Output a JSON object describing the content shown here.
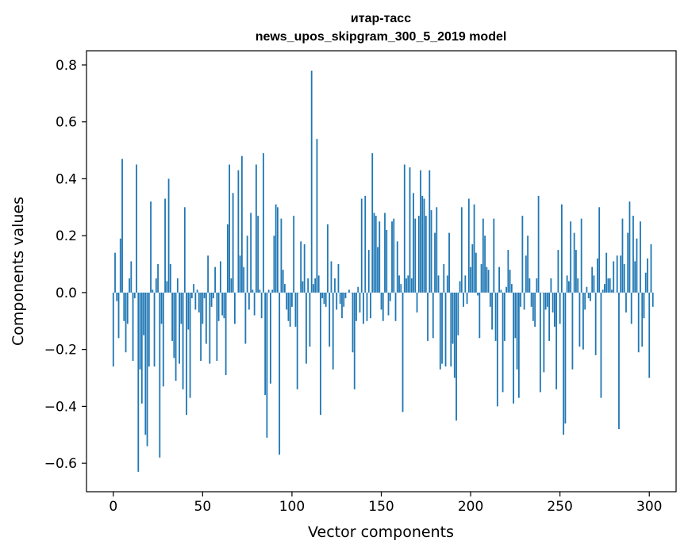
{
  "chart_data": {
    "type": "bar",
    "title": "итар-тасс",
    "subtitle": "news_upos_skipgram_300_5_2019 model",
    "xlabel": "Vector components",
    "ylabel": "Components values",
    "xlim": [
      -15,
      315
    ],
    "ylim": [
      -0.7,
      0.85
    ],
    "xticks": [
      0,
      50,
      100,
      150,
      200,
      250,
      300
    ],
    "yticks": [
      -0.6,
      -0.4,
      -0.2,
      0.0,
      0.2,
      0.4,
      0.6,
      0.8
    ],
    "ytick_labels": [
      "−0.6",
      "−0.4",
      "−0.2",
      "0.0",
      "0.2",
      "0.4",
      "0.6",
      "0.8"
    ],
    "grid": false,
    "color": "#1f77b4",
    "values": [
      -0.26,
      0.14,
      -0.03,
      -0.16,
      0.19,
      0.47,
      -0.1,
      -0.21,
      -0.11,
      0.05,
      0.11,
      -0.24,
      -0.02,
      0.45,
      -0.63,
      -0.27,
      -0.39,
      -0.15,
      -0.5,
      -0.54,
      -0.26,
      0.32,
      0.01,
      -0.26,
      0.05,
      0.1,
      -0.58,
      -0.11,
      -0.33,
      0.33,
      0.04,
      0.4,
      0.1,
      -0.17,
      -0.23,
      -0.31,
      0.05,
      -0.25,
      -0.11,
      -0.34,
      0.3,
      -0.43,
      -0.13,
      -0.37,
      -0.02,
      0.03,
      -0.06,
      0.01,
      -0.07,
      -0.24,
      -0.11,
      -0.02,
      -0.18,
      0.13,
      -0.25,
      -0.05,
      -0.02,
      0.09,
      -0.24,
      -0.1,
      0.11,
      -0.08,
      -0.09,
      -0.29,
      0.24,
      0.45,
      0.05,
      0.35,
      -0.11,
      0.0,
      0.43,
      0.13,
      0.48,
      0.09,
      -0.18,
      0.2,
      -0.06,
      0.28,
      0.01,
      -0.08,
      0.45,
      0.27,
      0.01,
      -0.09,
      0.49,
      -0.36,
      -0.51,
      0.01,
      -0.32,
      0.01,
      0.2,
      0.31,
      0.3,
      -0.57,
      0.26,
      0.08,
      0.03,
      -0.06,
      -0.1,
      -0.12,
      -0.05,
      0.27,
      -0.12,
      -0.34,
      0.0,
      0.18,
      0.04,
      0.17,
      -0.25,
      0.05,
      -0.19,
      0.78,
      0.03,
      0.05,
      0.54,
      0.06,
      -0.43,
      -0.02,
      -0.04,
      -0.05,
      0.24,
      -0.19,
      0.11,
      -0.27,
      0.05,
      -0.06,
      0.1,
      -0.04,
      -0.09,
      -0.05,
      -0.02,
      0.0,
      0.01,
      0.0,
      -0.21,
      -0.34,
      -0.1,
      0.02,
      -0.07,
      0.33,
      -0.11,
      0.34,
      -0.1,
      0.15,
      -0.09,
      0.49,
      0.28,
      0.27,
      0.16,
      0.25,
      -0.06,
      -0.1,
      0.28,
      0.22,
      -0.08,
      -0.03,
      0.25,
      0.26,
      -0.1,
      0.18,
      0.06,
      0.03,
      -0.42,
      0.45,
      0.05,
      0.06,
      0.44,
      0.05,
      0.35,
      0.26,
      -0.07,
      0.27,
      0.43,
      0.34,
      0.33,
      0.27,
      -0.17,
      0.43,
      0.29,
      -0.16,
      0.21,
      0.3,
      0.06,
      -0.27,
      -0.25,
      0.1,
      -0.26,
      0.06,
      0.21,
      -0.26,
      -0.18,
      -0.3,
      -0.45,
      -0.15,
      0.04,
      0.3,
      -0.05,
      0.06,
      -0.04,
      0.33,
      0.09,
      0.17,
      0.31,
      0.14,
      -0.01,
      -0.16,
      0.1,
      0.26,
      0.2,
      0.09,
      0.08,
      -0.05,
      -0.13,
      0.26,
      -0.17,
      -0.4,
      0.09,
      0.01,
      -0.35,
      -0.17,
      0.02,
      0.15,
      0.08,
      0.03,
      -0.39,
      -0.16,
      -0.27,
      -0.37,
      -0.05,
      0.27,
      -0.06,
      0.13,
      0.2,
      0.05,
      -0.05,
      -0.1,
      -0.12,
      0.05,
      0.34,
      -0.35,
      0.0,
      -0.28,
      -0.06,
      -0.05,
      -0.17,
      0.05,
      -0.07,
      -0.12,
      -0.34,
      0.15,
      -0.11,
      0.31,
      -0.5,
      -0.46,
      0.06,
      0.04,
      0.25,
      -0.27,
      0.21,
      0.15,
      0.05,
      -0.19,
      0.26,
      -0.2,
      -0.06,
      0.02,
      -0.02,
      -0.03,
      0.09,
      0.06,
      -0.22,
      0.12,
      0.3,
      -0.37,
      0.01,
      0.03,
      0.14,
      0.05,
      0.05,
      0.01,
      0.11,
      0.0,
      0.13,
      -0.48,
      0.13,
      0.26,
      0.1,
      -0.07,
      0.21,
      0.32,
      -0.11,
      0.27,
      0.11,
      0.19,
      -0.21,
      0.25,
      -0.19,
      -0.09,
      0.07,
      0.12,
      -0.3,
      0.17,
      -0.05
    ]
  }
}
